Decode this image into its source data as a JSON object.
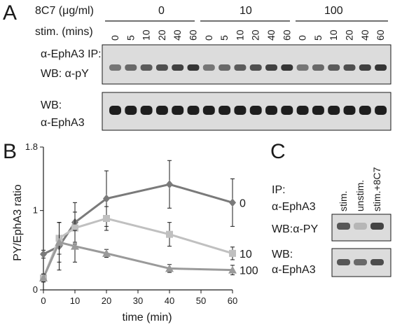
{
  "panel_a": {
    "letter": "A",
    "dose_label": "8C7 (μg/ml)",
    "doses": [
      "0",
      "10",
      "100"
    ],
    "stim_label": "stim. (mins)",
    "timepoints": [
      "0",
      "5",
      "10",
      "20",
      "40",
      "60"
    ],
    "blot_top_label_1": "α-EphA3 IP:",
    "blot_top_label_2": "WB: α-pY",
    "blot_bottom_label_1": "WB:",
    "blot_bottom_label_2": "α-EphA3"
  },
  "panel_b": {
    "letter": "B"
  },
  "panel_c": {
    "letter": "C",
    "ip_label_1": "IP:",
    "ip_label_2": "α-EphA3",
    "lanes": [
      "stim.",
      "unstim.",
      "stim.+8C7"
    ],
    "wb_py_label": "WB:α-PY",
    "wb_epha3_label_1": "WB:",
    "wb_epha3_label_2": "α-EphA3",
    "py_lane_intensity": [
      0.7,
      0.2,
      0.8
    ],
    "epha3_lane_intensity": [
      0.7,
      0.6,
      0.75
    ]
  },
  "colors": {
    "series_0": "#7a7a7a",
    "series_10": "#c0c0c0",
    "series_100": "#9a9a9a",
    "blot_bg": "#dcdcdc",
    "band": "#1e1e1e"
  },
  "chart_data": {
    "type": "line",
    "title": "",
    "xlabel": "time (min)",
    "ylabel": "PY/EphA3 ratio",
    "xlim": [
      0,
      60
    ],
    "ylim": [
      0,
      1.8
    ],
    "x_ticks": [
      "0",
      "10",
      "20",
      "30",
      "40",
      "50",
      "60"
    ],
    "y_ticks": [
      {
        "value": 0,
        "label": "0"
      },
      {
        "value": 1,
        "label": "1"
      },
      {
        "value": 1.8,
        "label": "1.8"
      }
    ],
    "x": [
      0,
      5,
      10,
      20,
      40,
      60
    ],
    "grid": false,
    "series": [
      {
        "name": "0",
        "marker": "diamond",
        "values": [
          0.45,
          0.55,
          0.85,
          1.15,
          1.33,
          1.1
        ],
        "errors": [
          0.05,
          0.3,
          0.25,
          0.35,
          0.3,
          0.3
        ]
      },
      {
        "name": "10",
        "marker": "square",
        "values": [
          0.15,
          0.65,
          0.78,
          0.9,
          0.7,
          0.46
        ],
        "errors": [
          0.05,
          0.2,
          0.2,
          0.15,
          0.15,
          0.08
        ]
      },
      {
        "name": "100",
        "marker": "triangle",
        "values": [
          0.15,
          0.6,
          0.55,
          0.46,
          0.27,
          0.25
        ],
        "errors": [
          0.05,
          0.25,
          0.2,
          0.05,
          0.05,
          0.06
        ]
      }
    ]
  }
}
